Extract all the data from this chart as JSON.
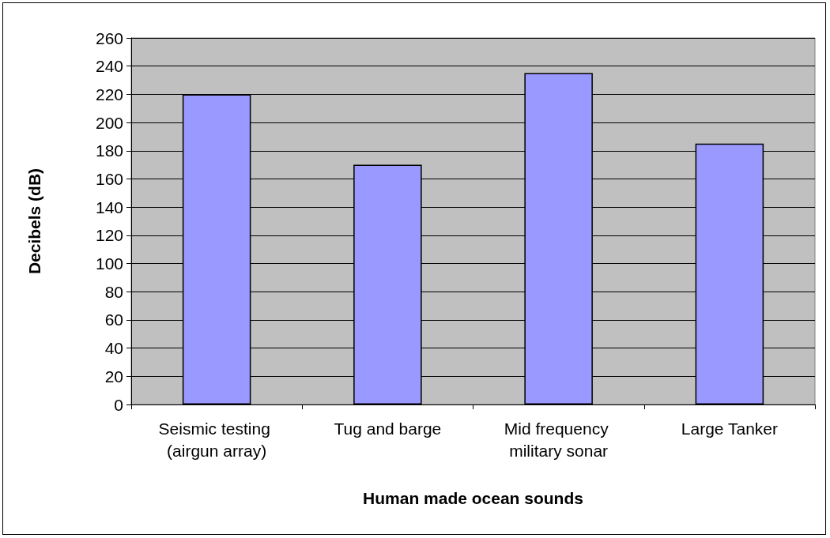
{
  "chart_data": {
    "type": "bar",
    "xlabel": "Human made ocean sounds",
    "ylabel": "Decibels (dB)",
    "categories": [
      "Seismic testing (airgun array)",
      "Tug and barge",
      "Mid frequency military sonar",
      "Large Tanker"
    ],
    "values": [
      220,
      170,
      235,
      185
    ],
    "color": "#9999ff",
    "ylim": [
      0,
      260
    ],
    "yticks": [
      0,
      20,
      40,
      60,
      80,
      100,
      120,
      140,
      160,
      180,
      200,
      220,
      240,
      260
    ],
    "grid": "y"
  }
}
